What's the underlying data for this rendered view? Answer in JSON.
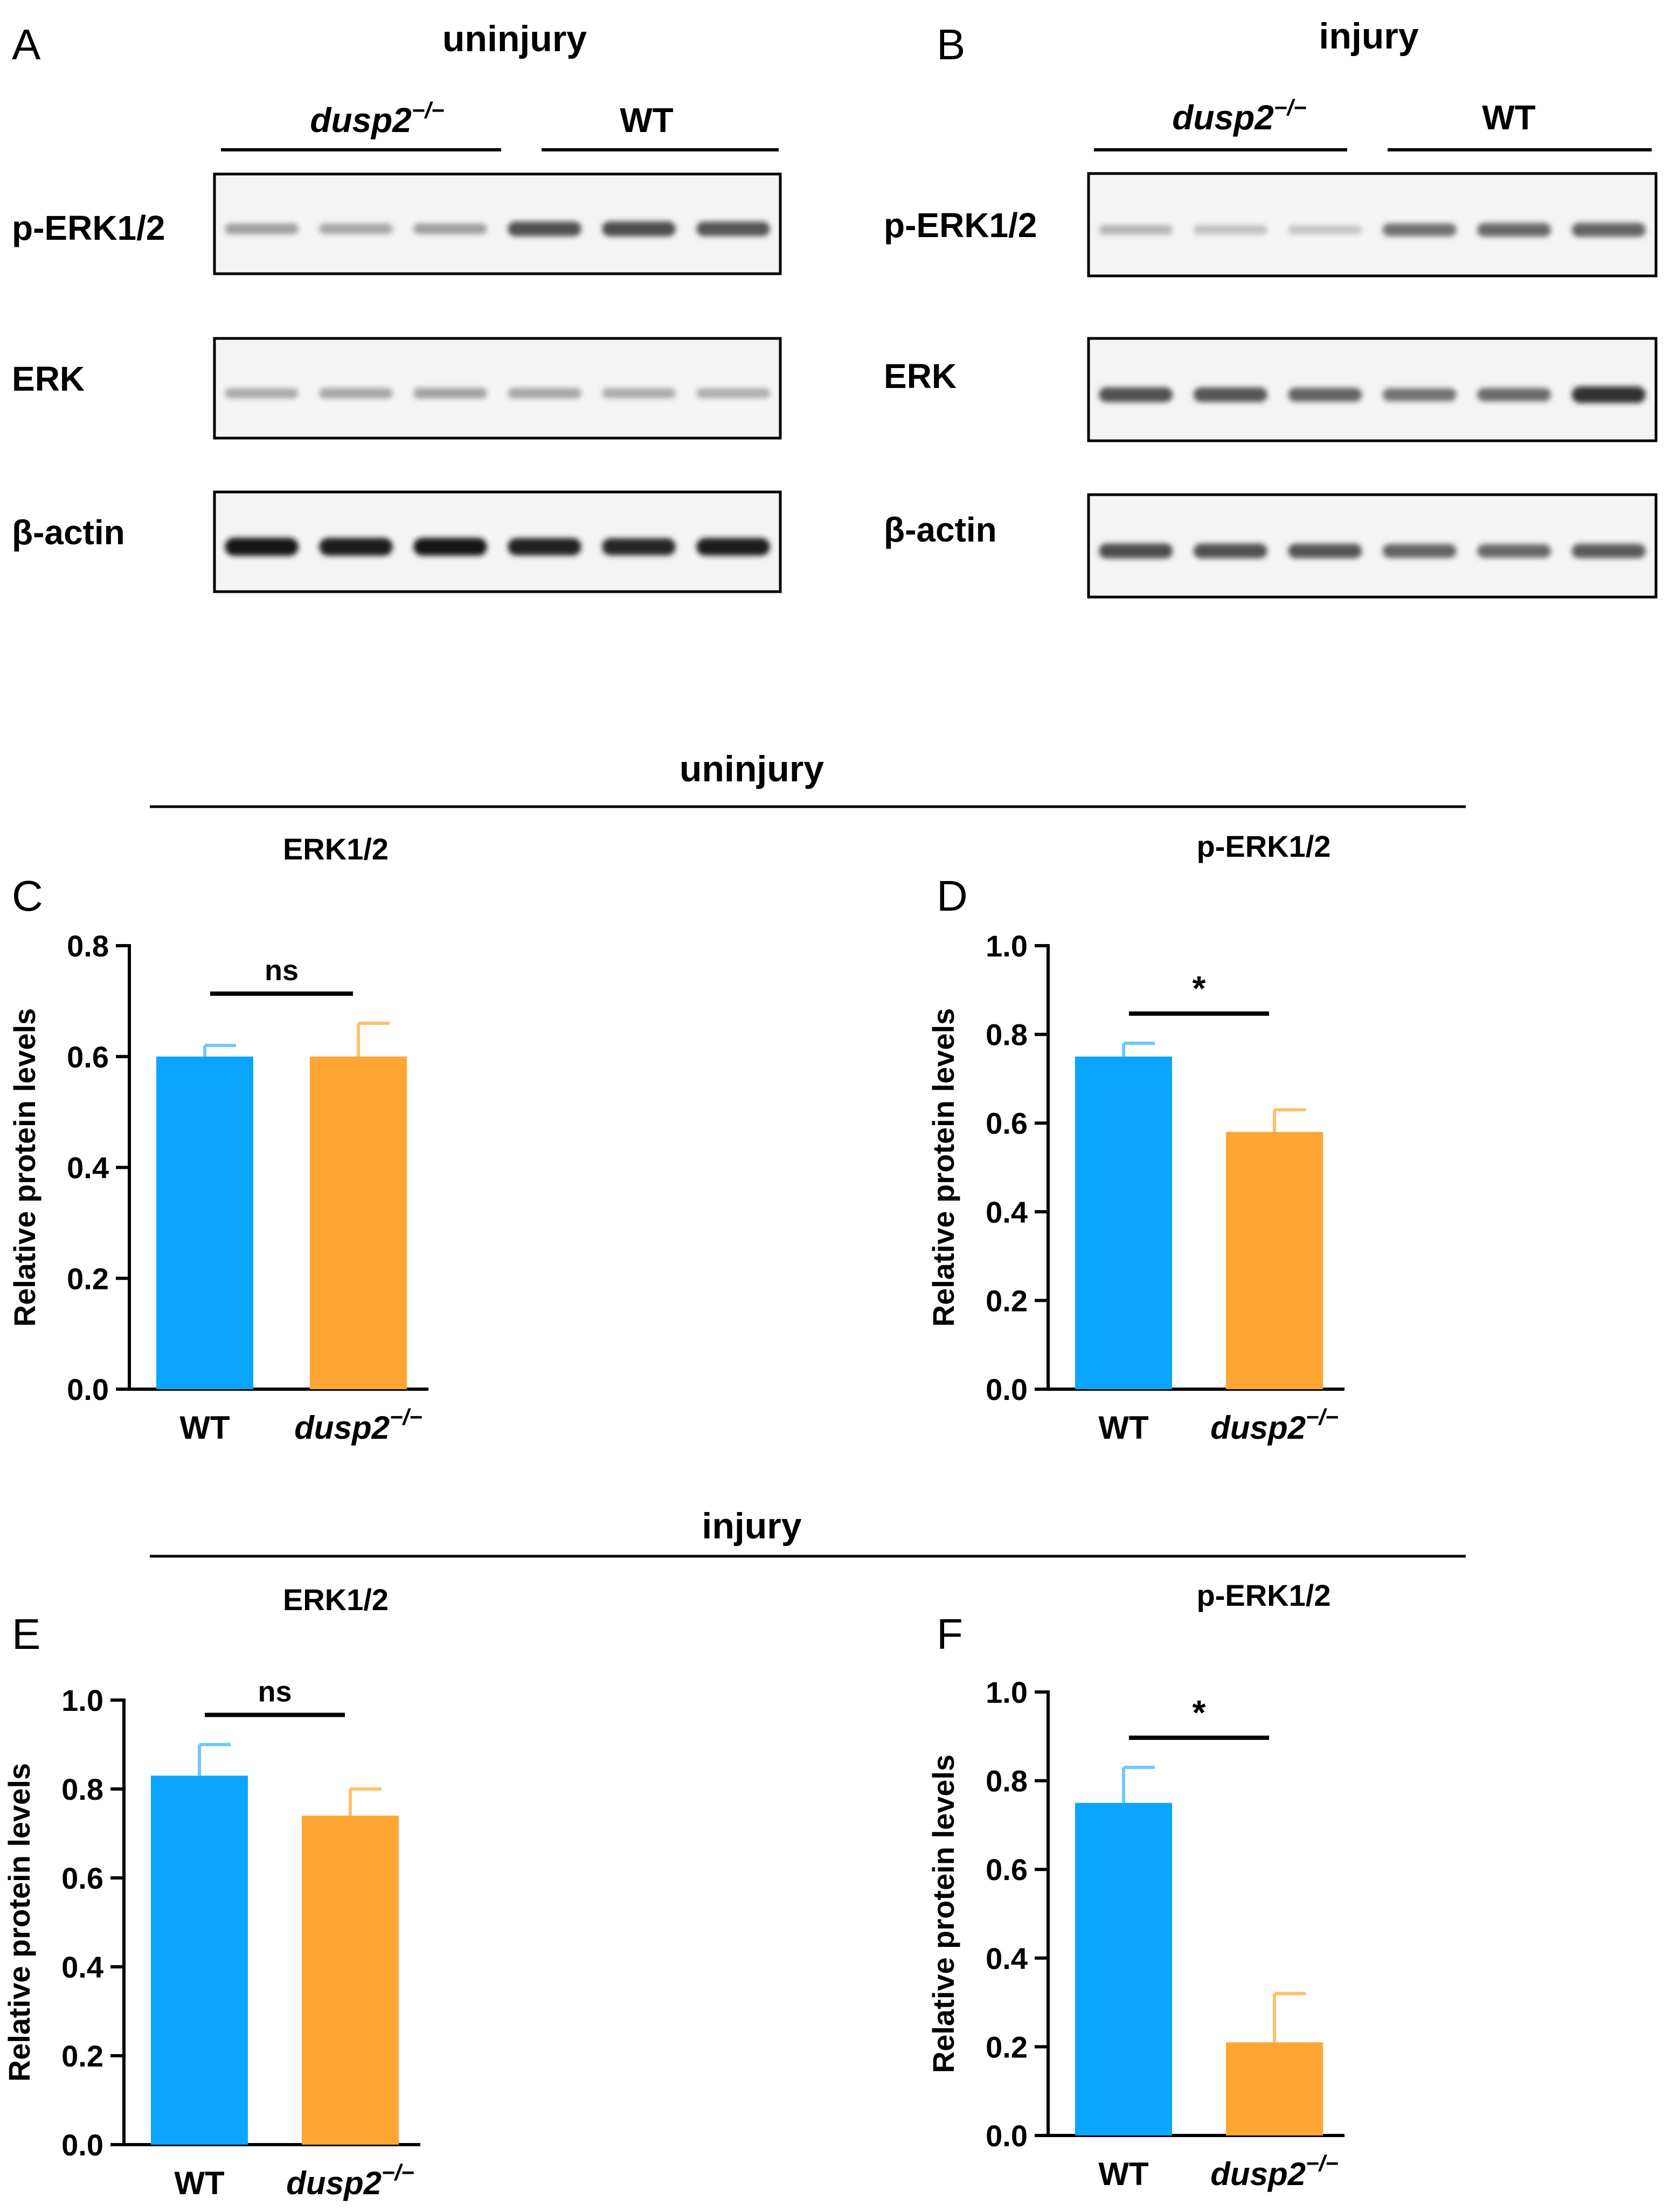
{
  "panel_letters": {
    "a": "A",
    "b": "B",
    "c": "C",
    "d": "D",
    "e": "E",
    "f": "F"
  },
  "section_headers": {
    "uninjury": "uninjury",
    "injury": "injury"
  },
  "blots": {
    "A": {
      "title": "uninjury",
      "group_left": "dusp2",
      "group_left_sup": "−/−",
      "group_right": "WT",
      "rows": [
        "p-ERK1/2",
        "ERK",
        "β-actin"
      ],
      "band_intensity": [
        [
          0.35,
          0.32,
          0.35,
          0.7,
          0.72,
          0.68
        ],
        [
          0.3,
          0.32,
          0.34,
          0.32,
          0.3,
          0.28
        ],
        [
          0.98,
          0.95,
          0.96,
          0.92,
          0.9,
          0.94
        ]
      ]
    },
    "B": {
      "title": "injury",
      "group_left": "dusp2",
      "group_left_sup": "−/−",
      "group_right": "WT",
      "rows": [
        "p-ERK1/2",
        "ERK",
        "β-actin"
      ],
      "band_intensity": [
        [
          0.25,
          0.2,
          0.18,
          0.55,
          0.6,
          0.62
        ],
        [
          0.7,
          0.68,
          0.62,
          0.55,
          0.58,
          0.85
        ],
        [
          0.72,
          0.7,
          0.68,
          0.62,
          0.6,
          0.66
        ]
      ]
    }
  },
  "chart_data": [
    {
      "panel": "C",
      "type": "bar",
      "title": "ERK1/2",
      "ylabel": "Relative protein levels",
      "ylim": [
        0,
        0.8
      ],
      "ticks": [
        "0.0",
        "0.2",
        "0.4",
        "0.6",
        "0.8"
      ],
      "categories": [
        "WT",
        "dusp2"
      ],
      "category_sup": [
        "",
        "−/−"
      ],
      "values": [
        0.6,
        0.6
      ],
      "errors": [
        0.02,
        0.06
      ],
      "significance": "ns"
    },
    {
      "panel": "D",
      "type": "bar",
      "title": "p-ERK1/2",
      "ylabel": "Relative protein levels",
      "ylim": [
        0,
        1.0
      ],
      "ticks": [
        "0.0",
        "0.2",
        "0.4",
        "0.6",
        "0.8",
        "1.0"
      ],
      "categories": [
        "WT",
        "dusp2"
      ],
      "category_sup": [
        "",
        "−/−"
      ],
      "values": [
        0.75,
        0.58
      ],
      "errors": [
        0.03,
        0.05
      ],
      "significance": "*"
    },
    {
      "panel": "E",
      "type": "bar",
      "title": "ERK1/2",
      "ylabel": "Relative protein levels",
      "ylim": [
        0,
        1.0
      ],
      "ticks": [
        "0.0",
        "0.2",
        "0.4",
        "0.6",
        "0.8",
        "1.0"
      ],
      "categories": [
        "WT",
        "dusp2"
      ],
      "category_sup": [
        "",
        "−/−"
      ],
      "values": [
        0.83,
        0.74
      ],
      "errors": [
        0.07,
        0.06
      ],
      "significance": "ns"
    },
    {
      "panel": "F",
      "type": "bar",
      "title": "p-ERK1/2",
      "ylabel": "Relative protein levels",
      "ylim": [
        0,
        1.0
      ],
      "ticks": [
        "0.0",
        "0.2",
        "0.4",
        "0.6",
        "0.8",
        "1.0"
      ],
      "categories": [
        "WT",
        "dusp2"
      ],
      "category_sup": [
        "",
        "−/−"
      ],
      "values": [
        0.75,
        0.21
      ],
      "errors": [
        0.08,
        0.11
      ],
      "significance": "*"
    }
  ],
  "colors": {
    "wt": "#0aa5ff",
    "mutant": "#ffa533",
    "axis": "#000000"
  }
}
